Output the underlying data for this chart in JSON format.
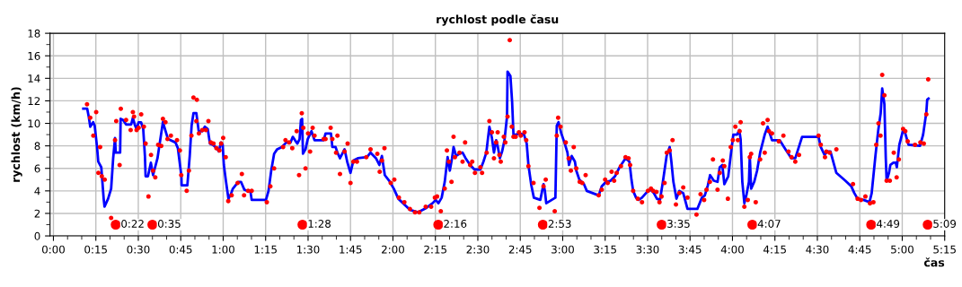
{
  "chart_data": {
    "type": "line",
    "title": "rychlost podle času",
    "xlabel": "čas",
    "ylabel": "rychlost (km/h)",
    "xlim": [
      -0.02,
      5.25
    ],
    "ylim": [
      0,
      18
    ],
    "xticks": [
      {
        "value": 0,
        "label": "0:00"
      },
      {
        "value": 0.25,
        "label": "0:15"
      },
      {
        "value": 0.5,
        "label": "0:30"
      },
      {
        "value": 0.75,
        "label": "0:45"
      },
      {
        "value": 1,
        "label": "1:00"
      },
      {
        "value": 1.25,
        "label": "1:15"
      },
      {
        "value": 1.5,
        "label": "1:30"
      },
      {
        "value": 1.75,
        "label": "1:45"
      },
      {
        "value": 2,
        "label": "2:00"
      },
      {
        "value": 2.25,
        "label": "2:15"
      },
      {
        "value": 2.5,
        "label": "2:30"
      },
      {
        "value": 2.75,
        "label": "2:45"
      },
      {
        "value": 3,
        "label": "3:00"
      },
      {
        "value": 3.25,
        "label": "3:15"
      },
      {
        "value": 3.5,
        "label": "3:30"
      },
      {
        "value": 3.75,
        "label": "3:45"
      },
      {
        "value": 4,
        "label": "4:00"
      },
      {
        "value": 4.25,
        "label": "4:15"
      },
      {
        "value": 4.5,
        "label": "4:30"
      },
      {
        "value": 4.75,
        "label": "4:45"
      },
      {
        "value": 5,
        "label": "5:00"
      },
      {
        "value": 5.25,
        "label": "5:15"
      }
    ],
    "yticks": [
      0,
      2,
      4,
      6,
      8,
      10,
      12,
      14,
      16,
      18
    ],
    "grid": true,
    "annotations": [
      {
        "text": "0:22",
        "x": 0.367,
        "y": 1.0
      },
      {
        "text": "0:35",
        "x": 0.583,
        "y": 1.0
      },
      {
        "text": "1:28",
        "x": 1.467,
        "y": 1.0
      },
      {
        "text": "2:16",
        "x": 2.267,
        "y": 1.0
      },
      {
        "text": "2:53",
        "x": 2.883,
        "y": 1.0
      },
      {
        "text": "3:35",
        "x": 3.583,
        "y": 1.0
      },
      {
        "text": "4:07",
        "x": 4.117,
        "y": 1.0
      },
      {
        "text": "4:49",
        "x": 4.817,
        "y": 1.0
      },
      {
        "text": "5:09",
        "x": 5.15,
        "y": 1.0
      }
    ],
    "series": [
      {
        "type": "scatter",
        "color": "#ff0000",
        "marker": "circle",
        "x": [
          0.198,
          0.217,
          0.252,
          0.235,
          0.275,
          0.265,
          0.285,
          0.302,
          0.34,
          0.363,
          0.37,
          0.39,
          0.397,
          0.428,
          0.455,
          0.468,
          0.475,
          0.49,
          0.502,
          0.517,
          0.533,
          0.543,
          0.56,
          0.575,
          0.587,
          0.6,
          0.617,
          0.635,
          0.645,
          0.66,
          0.672,
          0.692,
          0.728,
          0.745,
          0.753,
          0.785,
          0.798,
          0.813,
          0.825,
          0.845,
          0.842,
          0.857,
          0.877,
          0.898,
          0.913,
          0.927,
          0.943,
          0.96,
          0.978,
          0.988,
          1.0,
          1.015,
          1.03,
          1.05,
          1.085,
          1.11,
          1.123,
          1.147,
          1.168,
          1.257,
          1.278,
          1.3,
          1.353,
          1.367,
          1.388,
          1.407,
          1.433,
          1.447,
          1.463,
          1.472,
          1.485,
          1.5,
          1.512,
          1.527,
          1.538,
          1.592,
          1.603,
          1.633,
          1.643,
          1.665,
          1.673,
          1.688,
          1.715,
          1.733,
          1.75,
          1.767,
          1.788,
          1.843,
          1.868,
          1.908,
          1.922,
          1.935,
          1.95,
          1.987,
          2.008,
          2.035,
          2.067,
          2.1,
          2.13,
          2.155,
          2.193,
          2.225,
          2.247,
          2.26,
          2.282,
          2.305,
          2.318,
          2.33,
          2.345,
          2.357,
          2.365,
          2.392,
          2.41,
          2.425,
          2.455,
          2.467,
          2.483,
          2.515,
          2.525,
          2.552,
          2.568,
          2.583,
          2.595,
          2.608,
          2.617,
          2.627,
          2.635,
          2.653,
          2.662,
          2.675,
          2.688,
          2.7,
          2.71,
          2.723,
          2.742,
          2.753,
          2.775,
          2.785,
          2.798,
          2.828,
          2.863,
          2.887,
          2.9,
          2.953,
          2.965,
          2.973,
          2.987,
          3.018,
          3.035,
          3.048,
          3.065,
          3.08,
          3.1,
          3.115,
          3.135,
          3.212,
          3.23,
          3.25,
          3.265,
          3.288,
          3.303,
          3.318,
          3.343,
          3.37,
          3.388,
          3.397,
          3.415,
          3.442,
          3.467,
          3.502,
          3.52,
          3.533,
          3.552,
          3.57,
          3.582,
          3.6,
          3.613,
          3.63,
          3.647,
          3.667,
          3.687,
          3.71,
          3.735,
          3.788,
          3.812,
          3.833,
          3.847,
          3.867,
          3.885,
          3.912,
          3.925,
          3.943,
          3.952,
          3.973,
          3.99,
          4.002,
          4.017,
          4.032,
          4.042,
          4.048,
          4.07,
          4.09,
          4.102,
          4.11,
          4.137,
          4.163,
          4.18,
          4.19,
          4.207,
          4.215,
          4.233,
          4.273,
          4.3,
          4.33,
          4.348,
          4.37,
          4.392,
          4.507,
          4.52,
          4.545,
          4.553,
          4.572,
          4.612,
          4.71,
          4.737,
          4.757,
          4.783,
          4.81,
          4.83,
          4.847,
          4.86,
          4.872,
          4.882,
          4.895,
          4.908,
          4.927,
          4.95,
          4.967,
          4.98,
          5.005,
          5.018,
          5.032,
          5.075,
          5.107,
          5.127,
          5.142,
          5.153
        ],
        "values": [
          11.7,
          10.5,
          11.0,
          8.9,
          7.9,
          5.6,
          5.3,
          5.0,
          1.6,
          8.5,
          10.2,
          6.3,
          11.3,
          10.3,
          9.4,
          11.0,
          10.6,
          9.4,
          9.6,
          10.8,
          9.7,
          8.2,
          3.5,
          7.2,
          5.8,
          5.2,
          8.1,
          8.0,
          10.4,
          10.1,
          8.6,
          8.9,
          8.5,
          7.6,
          5.4,
          4.0,
          5.8,
          8.9,
          12.3,
          12.1,
          10.2,
          9.1,
          9.4,
          9.4,
          10.2,
          8.3,
          8.2,
          7.8,
          7.6,
          8.2,
          8.7,
          7.0,
          3.1,
          3.6,
          4.7,
          5.5,
          3.6,
          4.0,
          4.0,
          3.0,
          4.4,
          6.0,
          7.9,
          8.5,
          8.3,
          7.8,
          9.3,
          5.4,
          10.9,
          9.6,
          6.0,
          9.1,
          7.5,
          9.6,
          8.9,
          8.6,
          8.6,
          9.6,
          8.6,
          7.4,
          8.9,
          5.5,
          7.5,
          8.2,
          4.7,
          6.6,
          6.6,
          7.0,
          7.7,
          7.3,
          5.7,
          6.7,
          7.8,
          4.7,
          5.0,
          3.4,
          3.0,
          2.4,
          2.1,
          2.1,
          2.6,
          2.6,
          3.4,
          3.5,
          2.2,
          4.2,
          7.6,
          6.6,
          4.8,
          8.8,
          7.0,
          7.4,
          6.6,
          8.3,
          6.3,
          6.6,
          5.6,
          6.1,
          5.6,
          7.4,
          10.2,
          9.2,
          6.9,
          8.3,
          9.2,
          7.2,
          6.6,
          8.8,
          8.3,
          10.6,
          17.4,
          9.7,
          8.8,
          8.8,
          9.2,
          8.9,
          9.2,
          8.5,
          6.2,
          4.7,
          2.5,
          4.4,
          5.0,
          2.2,
          8.9,
          10.5,
          9.7,
          8.3,
          6.9,
          5.8,
          7.9,
          6.0,
          4.8,
          4.7,
          5.4,
          3.6,
          4.1,
          5.0,
          4.7,
          5.7,
          4.9,
          5.6,
          6.2,
          7.0,
          6.9,
          6.3,
          4.0,
          3.3,
          3.0,
          4.0,
          4.2,
          4.0,
          3.9,
          3.0,
          3.5,
          4.7,
          7.4,
          7.6,
          8.5,
          2.8,
          3.8,
          4.3,
          3.4,
          1.9,
          3.7,
          3.2,
          4.1,
          4.8,
          6.8,
          4.1,
          5.6,
          6.7,
          6.2,
          3.3,
          7.9,
          8.5,
          9.7,
          8.5,
          9.3,
          10.1,
          2.6,
          3.2,
          7.0,
          7.3,
          3.0,
          6.8,
          10.0,
          7.4,
          10.3,
          9.3,
          9.1,
          8.4,
          8.9,
          7.5,
          7.0,
          6.6,
          7.2,
          8.9,
          8.1,
          7.0,
          7.5,
          7.4,
          7.7,
          4.6,
          3.3,
          3.2,
          3.5,
          2.9,
          3.0,
          8.1,
          10.0,
          8.9,
          14.3,
          12.5,
          4.9,
          4.9,
          7.4,
          5.2,
          6.8,
          9.5,
          9.3,
          8.4,
          8.1,
          8.3,
          8.2,
          10.8,
          13.9
        ]
      },
      {
        "color": "#0000ff",
        "marker": "none",
        "line_style": "solid",
        "x": [
          0.176,
          0.199,
          0.208,
          0.217,
          0.234,
          0.243,
          0.257,
          0.264,
          0.282,
          0.296,
          0.301,
          0.322,
          0.34,
          0.352,
          0.363,
          0.367,
          0.393,
          0.396,
          0.41,
          0.428,
          0.458,
          0.468,
          0.481,
          0.49,
          0.502,
          0.516,
          0.529,
          0.539,
          0.543,
          0.557,
          0.574,
          0.587,
          0.599,
          0.613,
          0.634,
          0.645,
          0.657,
          0.675,
          0.719,
          0.733,
          0.754,
          0.755,
          0.789,
          0.803,
          0.814,
          0.825,
          0.842,
          0.856,
          0.877,
          0.892,
          0.909,
          0.922,
          0.939,
          0.962,
          0.974,
          0.987,
          0.997,
          1.004,
          1.015,
          1.031,
          1.045,
          1.057,
          1.089,
          1.105,
          1.125,
          1.142,
          1.16,
          1.168,
          1.252,
          1.267,
          1.283,
          1.3,
          1.318,
          1.345,
          1.372,
          1.397,
          1.41,
          1.423,
          1.437,
          1.45,
          1.458,
          1.465,
          1.47,
          1.485,
          1.498,
          1.52,
          1.538,
          1.592,
          1.603,
          1.635,
          1.643,
          1.662,
          1.673,
          1.688,
          1.705,
          1.715,
          1.732,
          1.75,
          1.767,
          1.793,
          1.847,
          1.868,
          1.9,
          1.92,
          1.935,
          1.943,
          1.952,
          1.978,
          2.005,
          2.032,
          2.067,
          2.102,
          2.147,
          2.198,
          2.233,
          2.252,
          2.268,
          2.287,
          2.305,
          2.322,
          2.335,
          2.348,
          2.357,
          2.372,
          2.393,
          2.41,
          2.428,
          2.455,
          2.48,
          2.515,
          2.533,
          2.55,
          2.56,
          2.568,
          2.583,
          2.595,
          2.608,
          2.618,
          2.63,
          2.643,
          2.657,
          2.672,
          2.675,
          2.692,
          2.702,
          2.71,
          2.723,
          2.745,
          2.772,
          2.788,
          2.798,
          2.815,
          2.83,
          2.868,
          2.887,
          2.895,
          2.903,
          2.957,
          2.965,
          2.975,
          2.992,
          3.01,
          3.028,
          3.037,
          3.053,
          3.072,
          3.08,
          3.098,
          3.125,
          3.142,
          3.212,
          3.23,
          3.255,
          3.282,
          3.308,
          3.335,
          3.37,
          3.393,
          3.405,
          3.415,
          3.432,
          3.447,
          3.467,
          3.502,
          3.52,
          3.537,
          3.555,
          3.573,
          3.59,
          3.612,
          3.63,
          3.64,
          3.652,
          3.67,
          3.687,
          3.71,
          3.735,
          3.793,
          3.82,
          3.837,
          3.855,
          3.868,
          3.89,
          3.912,
          3.925,
          3.94,
          3.952,
          3.975,
          3.995,
          4.005,
          4.027,
          4.04,
          4.048,
          4.058,
          4.07,
          4.083,
          4.097,
          4.102,
          4.11,
          4.128,
          4.145,
          4.163,
          4.19,
          4.207,
          4.233,
          4.26,
          4.278,
          4.312,
          4.347,
          4.37,
          4.41,
          4.507,
          4.52,
          4.542,
          4.56,
          4.577,
          4.612,
          4.665,
          4.7,
          4.718,
          4.737,
          4.772,
          4.807,
          4.82,
          4.842,
          4.858,
          4.873,
          4.882,
          4.895,
          4.903,
          4.908,
          4.922,
          4.93,
          4.948,
          4.962,
          4.968,
          4.983,
          5.005,
          5.018,
          5.037,
          5.105,
          5.123,
          5.142,
          5.147,
          5.155
        ],
        "values": [
          11.3,
          11.3,
          10.6,
          9.7,
          10.1,
          9.8,
          7.9,
          6.6,
          6.1,
          3.3,
          2.6,
          3.3,
          4.2,
          6.9,
          8.7,
          7.4,
          7.4,
          10.4,
          10.3,
          9.9,
          9.9,
          10.5,
          9.8,
          9.5,
          10.1,
          10.1,
          9.5,
          7.1,
          5.3,
          5.3,
          6.5,
          5.4,
          6.1,
          6.9,
          9.0,
          10.1,
          9.5,
          8.6,
          8.3,
          7.8,
          5.3,
          4.5,
          4.5,
          7.1,
          9.8,
          10.9,
          10.9,
          9.3,
          9.3,
          9.7,
          9.5,
          8.2,
          8.1,
          7.8,
          7.5,
          8.3,
          8.1,
          6.3,
          5.0,
          3.3,
          3.7,
          4.2,
          4.8,
          4.8,
          4.1,
          4.0,
          4.0,
          3.2,
          3.2,
          4.0,
          5.8,
          7.3,
          7.7,
          7.9,
          8.3,
          8.3,
          8.8,
          8.5,
          8.2,
          8.6,
          10.3,
          10.4,
          7.3,
          7.7,
          8.6,
          9.3,
          8.5,
          8.5,
          9.1,
          9.1,
          7.9,
          7.9,
          7.4,
          6.9,
          7.4,
          7.7,
          6.5,
          5.6,
          6.7,
          6.9,
          7.0,
          7.4,
          6.9,
          6.3,
          7.1,
          6.3,
          5.4,
          4.9,
          4.2,
          3.3,
          2.8,
          2.3,
          2.1,
          2.5,
          2.9,
          3.2,
          2.9,
          3.4,
          4.8,
          7.0,
          5.8,
          6.9,
          7.9,
          7.1,
          7.3,
          7.4,
          6.9,
          6.3,
          5.9,
          5.9,
          6.6,
          7.4,
          8.7,
          9.7,
          8.7,
          7.4,
          8.5,
          7.9,
          6.9,
          7.5,
          8.5,
          10.6,
          14.6,
          14.2,
          11.9,
          9.0,
          9.0,
          9.1,
          9.0,
          8.2,
          6.3,
          4.5,
          3.4,
          3.2,
          4.6,
          4.0,
          2.9,
          3.4,
          9.8,
          10.1,
          9.1,
          8.3,
          7.4,
          6.3,
          7.1,
          6.6,
          5.8,
          5.0,
          4.6,
          4.0,
          3.6,
          4.4,
          4.8,
          4.9,
          5.3,
          6.1,
          6.9,
          6.6,
          5.0,
          4.0,
          3.4,
          3.2,
          3.4,
          4.0,
          4.1,
          3.8,
          3.3,
          3.2,
          4.8,
          7.1,
          7.9,
          6.6,
          4.8,
          3.3,
          4.0,
          3.8,
          2.4,
          2.4,
          3.4,
          3.6,
          4.5,
          5.4,
          4.9,
          4.8,
          6.1,
          6.3,
          4.6,
          5.3,
          7.8,
          9.0,
          9.0,
          9.4,
          8.6,
          4.8,
          2.9,
          3.7,
          4.8,
          7.1,
          4.2,
          4.8,
          5.8,
          7.4,
          9.0,
          9.7,
          8.5,
          8.5,
          8.5,
          7.7,
          6.9,
          6.9,
          8.8,
          8.8,
          7.9,
          7.2,
          7.5,
          7.5,
          5.6,
          4.9,
          4.4,
          3.8,
          3.3,
          3.2,
          3.0,
          3.8,
          7.1,
          9.3,
          10.9,
          13.1,
          11.7,
          6.9,
          4.9,
          5.6,
          6.3,
          6.5,
          6.5,
          6.1,
          8.1,
          9.4,
          9.1,
          8.1,
          8.0,
          9.0,
          11.0,
          12.1,
          12.2
        ]
      }
    ]
  }
}
